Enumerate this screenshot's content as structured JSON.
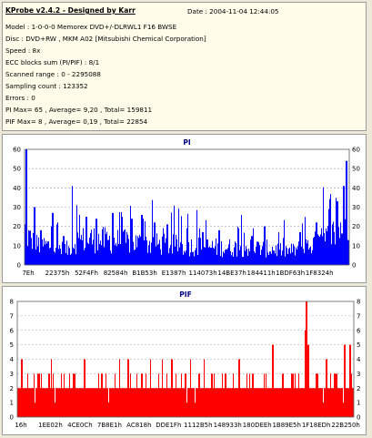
{
  "header": {
    "title": "KProbe v2.4.2 - Designed by Karr",
    "date": "Date : 2004-11-04 12:44:05",
    "lines": [
      "Model : 1-0-0-0 Memorex DVD+/-DLRWL1 F16 BWSE",
      "Disc : DVD+RW , MKM A02 [Mitsubishi Chemical Corporation]",
      "Speed : 8x",
      "ECC blocks sum (PI/PIF) : 8/1",
      "Scanned range : 0 - 2295088",
      "Sampling count : 123352",
      "Errors : 0",
      "PI Max= 65 , Average= 9,20 , Total= 159811",
      "PIF Max= 8 , Average= 0,19 , Total= 22854"
    ]
  },
  "chart_data": [
    {
      "type": "bar",
      "title": "PI",
      "color": "#0000ff",
      "ylim": [
        0,
        60
      ],
      "yticks": [
        0,
        10,
        20,
        30,
        40,
        50,
        60
      ],
      "xtick_labels": [
        "7Eh",
        "22375h",
        "52F4Fh",
        "82584h",
        "B1B53h",
        "E1387h",
        "114073h",
        "14BE37h",
        "184411h",
        "1BDF63h",
        "1F8324h"
      ],
      "grid": true,
      "profile": [
        [
          0.0,
          20
        ],
        [
          0.012,
          16
        ],
        [
          0.03,
          12
        ],
        [
          0.08,
          11
        ],
        [
          0.12,
          9
        ],
        [
          0.138,
          9
        ],
        [
          0.142,
          12
        ],
        [
          0.16,
          14
        ],
        [
          0.2,
          15
        ],
        [
          0.26,
          14
        ],
        [
          0.33,
          13
        ],
        [
          0.4,
          12
        ],
        [
          0.5,
          11
        ],
        [
          0.6,
          10
        ],
        [
          0.7,
          10
        ],
        [
          0.78,
          9
        ],
        [
          0.82,
          8
        ],
        [
          0.86,
          10
        ],
        [
          0.9,
          13
        ],
        [
          0.94,
          16
        ],
        [
          0.97,
          21
        ],
        [
          1.0,
          28
        ]
      ],
      "peaks": [
        [
          0.004,
          62
        ],
        [
          0.03,
          30
        ],
        [
          0.05,
          18
        ],
        [
          0.085,
          27
        ],
        [
          0.1,
          21
        ],
        [
          0.12,
          15
        ],
        [
          0.146,
          41
        ],
        [
          0.16,
          31
        ],
        [
          0.19,
          25
        ],
        [
          0.22,
          24
        ],
        [
          0.27,
          27
        ],
        [
          0.3,
          25
        ],
        [
          0.33,
          24
        ],
        [
          0.36,
          26
        ],
        [
          0.4,
          22
        ],
        [
          0.44,
          21
        ],
        [
          0.5,
          19
        ],
        [
          0.55,
          17
        ],
        [
          0.6,
          18
        ],
        [
          0.66,
          19
        ],
        [
          0.7,
          15
        ],
        [
          0.74,
          20
        ],
        [
          0.8,
          14
        ],
        [
          0.85,
          17
        ],
        [
          0.9,
          22
        ],
        [
          0.94,
          29
        ],
        [
          0.965,
          33
        ],
        [
          0.985,
          41
        ],
        [
          0.993,
          54
        ]
      ]
    },
    {
      "type": "bar",
      "title": "PIF",
      "color": "#ff0000",
      "ylim": [
        0,
        8
      ],
      "yticks": [
        0,
        1,
        2,
        3,
        4,
        5,
        6,
        7,
        8
      ],
      "xtick_labels": [
        "16h",
        "1EE02h",
        "4CE0Ch",
        "7B8E1h",
        "AC818h",
        "DDE1Fh",
        "1112B5h",
        "148933h",
        "180DEEh",
        "1B89E5h",
        "1F18EDh",
        "22B250h"
      ],
      "grid": true,
      "base": 2,
      "peaks": [
        [
          0.012,
          4
        ],
        [
          0.03,
          3
        ],
        [
          0.06,
          3
        ],
        [
          0.1,
          4
        ],
        [
          0.13,
          3
        ],
        [
          0.17,
          3
        ],
        [
          0.2,
          4
        ],
        [
          0.25,
          3
        ],
        [
          0.29,
          3
        ],
        [
          0.33,
          4
        ],
        [
          0.37,
          3
        ],
        [
          0.42,
          3
        ],
        [
          0.46,
          4
        ],
        [
          0.5,
          3
        ],
        [
          0.54,
          3
        ],
        [
          0.58,
          3
        ],
        [
          0.62,
          3
        ],
        [
          0.66,
          4
        ],
        [
          0.7,
          3
        ],
        [
          0.74,
          3
        ],
        [
          0.76,
          5
        ],
        [
          0.79,
          3
        ],
        [
          0.82,
          3
        ],
        [
          0.857,
          6
        ],
        [
          0.861,
          8
        ],
        [
          0.866,
          5
        ],
        [
          0.89,
          3
        ],
        [
          0.92,
          4
        ],
        [
          0.95,
          3
        ],
        [
          0.975,
          5
        ],
        [
          0.99,
          5
        ]
      ]
    }
  ]
}
